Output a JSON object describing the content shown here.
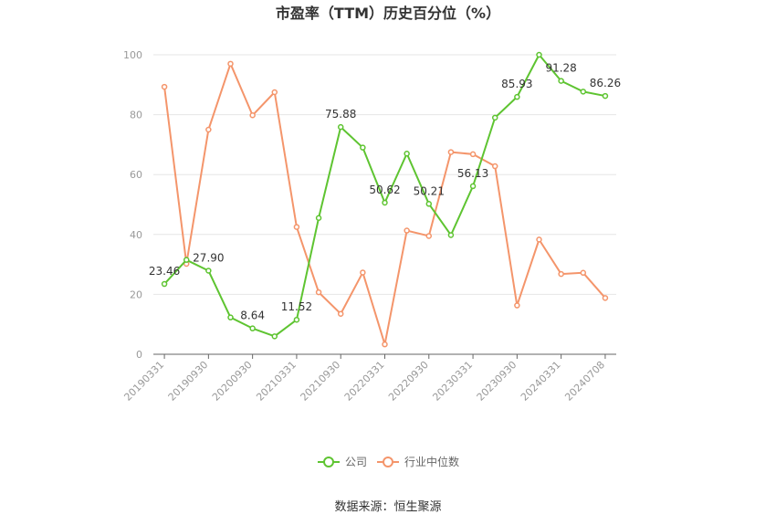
{
  "chart_data": {
    "type": "line",
    "title": "市盈率（TTM）历史百分位（%）",
    "xlabel": "",
    "ylabel": "",
    "ylim": [
      0,
      100
    ],
    "yticks": [
      "0",
      "20",
      "40",
      "60",
      "80",
      "100"
    ],
    "x_tick_labels": [
      "20190331",
      "20190930",
      "20200930",
      "20210331",
      "20210930",
      "20220331",
      "20220930",
      "20230331",
      "20230930",
      "20240331",
      "20240708"
    ],
    "x_tick_positions": [
      0,
      2,
      4,
      6,
      8,
      10,
      12,
      14,
      16,
      18,
      20
    ],
    "series": [
      {
        "name": "公司",
        "color": "#5ec431",
        "values": [
          23.46,
          31.5,
          27.9,
          12.3,
          8.64,
          6.0,
          11.52,
          45.5,
          75.88,
          69.0,
          50.62,
          67.0,
          50.21,
          39.8,
          56.13,
          79.0,
          85.93,
          100.0,
          91.28,
          87.7,
          86.26
        ],
        "labels": [
          "23.46",
          "",
          "27.90",
          "",
          "8.64",
          "",
          "11.52",
          "",
          "75.88",
          "",
          "50.62",
          "",
          "50.21",
          "",
          "56.13",
          "",
          "85.93",
          "",
          "91.28",
          "",
          "86.26"
        ]
      },
      {
        "name": "行业中位数",
        "color": "#f4956b",
        "values": [
          89.3,
          30.2,
          75.0,
          97.0,
          79.8,
          87.5,
          42.5,
          20.7,
          13.5,
          27.3,
          3.3,
          41.3,
          39.5,
          67.5,
          66.8,
          62.8,
          16.3,
          38.3,
          26.8,
          27.2,
          18.8
        ]
      }
    ],
    "grid": true,
    "legend_position": "bottom-center"
  },
  "source_text": "数据来源：恒生聚源"
}
